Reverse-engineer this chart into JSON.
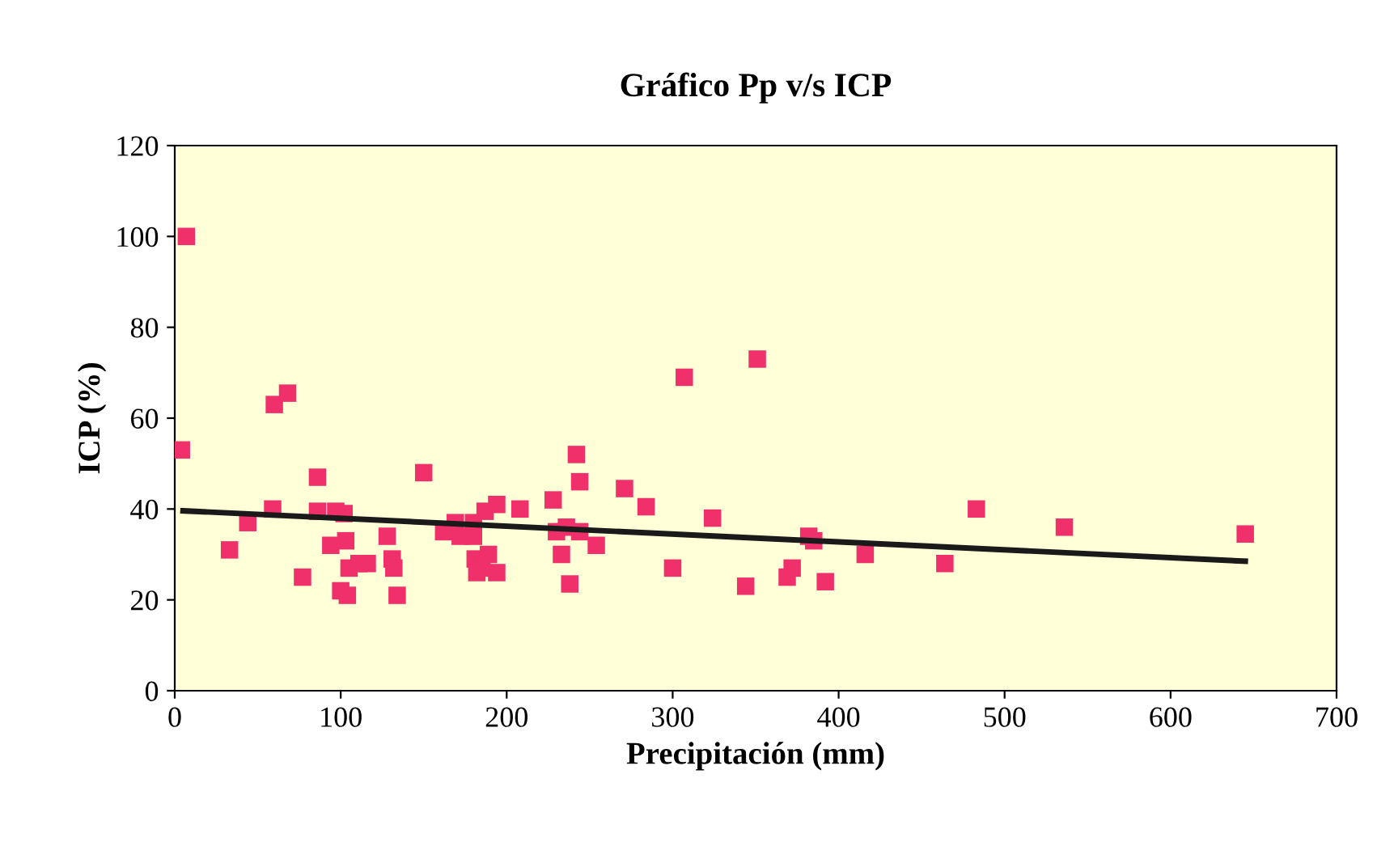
{
  "chart_data": {
    "type": "scatter",
    "title": "Gráfico Pp v/s ICP",
    "xlabel": "Precipitación (mm)",
    "ylabel": "ICP (%)",
    "xlim": [
      0,
      700
    ],
    "xticks": [
      0,
      100,
      200,
      300,
      400,
      500,
      600,
      700
    ],
    "ylim": [
      0,
      120
    ],
    "yticks": [
      0,
      20,
      40,
      60,
      80,
      100,
      120
    ],
    "grid": false,
    "legend": false,
    "marker": "square",
    "series": [
      {
        "color": "#f0306a",
        "x": [
          4,
          7,
          33,
          44,
          60,
          68,
          59,
          77,
          86,
          86,
          94,
          97,
          100,
          102,
          103,
          105,
          104,
          111,
          116,
          128,
          131,
          132,
          134,
          150,
          162,
          169,
          172,
          180,
          180,
          181,
          182,
          185,
          189,
          194,
          187,
          194,
          208,
          228,
          230,
          233,
          236,
          238,
          242,
          244,
          244,
          254,
          271,
          284,
          300,
          307,
          324,
          344,
          351,
          369,
          372,
          382,
          385,
          392,
          416,
          464,
          483,
          536,
          645
        ],
        "values": [
          53,
          100,
          31,
          37,
          63,
          65.5,
          40,
          25,
          47,
          39.5,
          32,
          39.5,
          22,
          39,
          33,
          27,
          21,
          28,
          28,
          34,
          29,
          27,
          21,
          48,
          35,
          37,
          34,
          37,
          34,
          29,
          26,
          27,
          30,
          26,
          39.5,
          41,
          40,
          42,
          35,
          30,
          36,
          23.5,
          52,
          46,
          35,
          32,
          44.5,
          40.5,
          27,
          69,
          38,
          23,
          73,
          25,
          27,
          34,
          33,
          24,
          30,
          28,
          40,
          36,
          34.5
        ]
      },
      {
        "type": "line",
        "color": "#1a1a1a",
        "marker": "none",
        "x": [
          5,
          645
        ],
        "values": [
          39.6,
          28.5
        ]
      }
    ]
  }
}
